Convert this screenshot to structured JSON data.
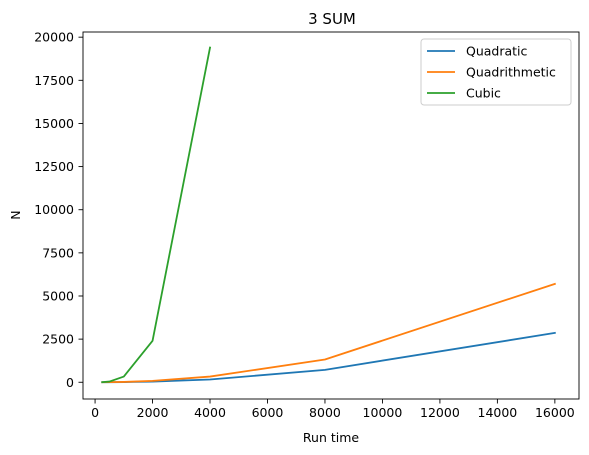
{
  "chart_data": {
    "type": "line",
    "title": "3 SUM",
    "xlabel": "Run time",
    "ylabel": "N",
    "xlim": [
      -420,
      16840
    ],
    "ylim": [
      -970,
      20300
    ],
    "x_ticks": [
      0,
      2000,
      4000,
      6000,
      8000,
      10000,
      12000,
      14000,
      16000
    ],
    "y_ticks": [
      0,
      2500,
      5000,
      7500,
      10000,
      12500,
      15000,
      17500,
      20000
    ],
    "grid": false,
    "legend_position": "top-right",
    "series": [
      {
        "name": "Quadratic",
        "color": "#1f77b4",
        "x": [
          250,
          500,
          1000,
          2000,
          4000,
          8000,
          16000
        ],
        "y": [
          1,
          3,
          10,
          40,
          160,
          720,
          2860
        ]
      },
      {
        "name": "Quadrithmetic",
        "color": "#ff7f0e",
        "x": [
          250,
          500,
          1000,
          2000,
          4000,
          8000,
          16000
        ],
        "y": [
          2,
          6,
          20,
          80,
          330,
          1320,
          5700
        ]
      },
      {
        "name": "Cubic",
        "color": "#2ca02c",
        "x": [
          250,
          500,
          1000,
          2000,
          4000
        ],
        "y": [
          5,
          40,
          330,
          2400,
          19400
        ]
      }
    ]
  }
}
